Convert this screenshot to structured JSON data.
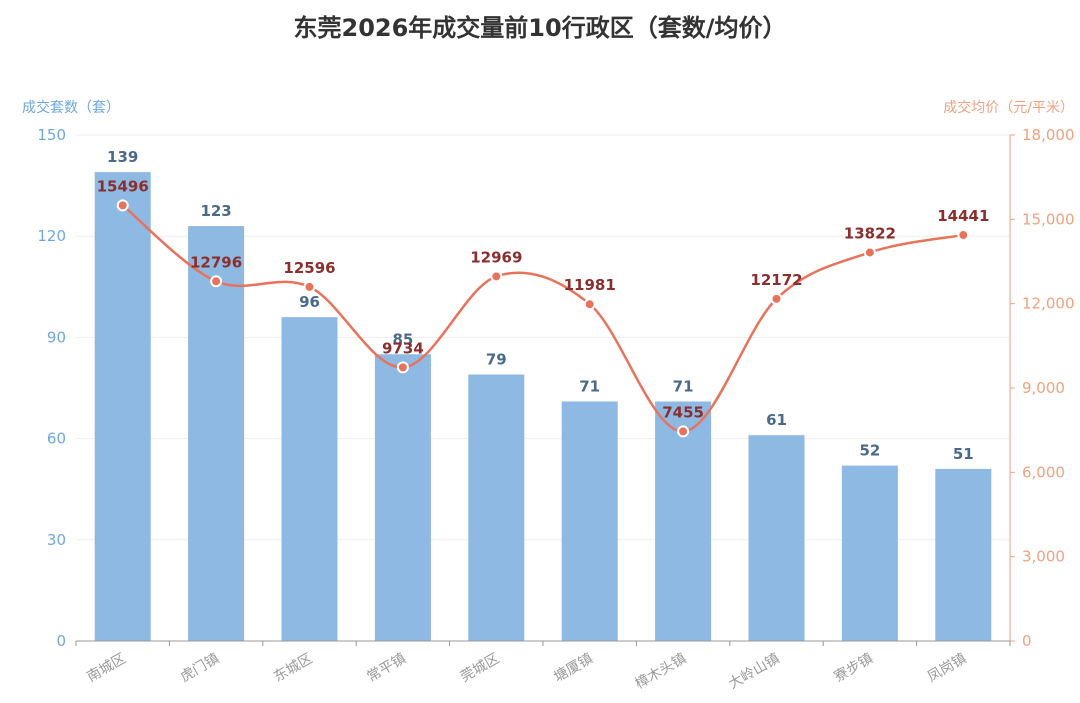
{
  "chart_data": {
    "type": "bar",
    "title": "东莞2026年成交量前10行政区（套数/均价）",
    "categories": [
      "南城区",
      "虎门镇",
      "东城区",
      "常平镇",
      "莞城区",
      "塘厦镇",
      "樟木头镇",
      "大岭山镇",
      "寮步镇",
      "凤岗镇"
    ],
    "series": [
      {
        "name": "成交套数（套）",
        "type": "bar",
        "axis": "left",
        "color": "#8db9e2",
        "values": [
          139,
          123,
          96,
          85,
          79,
          71,
          71,
          61,
          52,
          51
        ]
      },
      {
        "name": "成交均价（元/平米）",
        "type": "line",
        "axis": "right",
        "color": "#e8735c",
        "values": [
          15496,
          12796,
          12596,
          9734,
          12969,
          11981,
          7455,
          12172,
          13822,
          14441
        ]
      }
    ],
    "y_left": {
      "label": "成交套数（套）",
      "range": [
        0,
        150
      ],
      "ticks": [
        0,
        30,
        60,
        90,
        120,
        150
      ],
      "tick_labels": [
        "0",
        "30",
        "60",
        "90",
        "120",
        "150"
      ]
    },
    "y_right": {
      "label": "成交均价（元/平米）",
      "range": [
        0,
        18000
      ],
      "ticks": [
        0,
        3000,
        6000,
        9000,
        12000,
        15000,
        18000
      ],
      "tick_labels": [
        "0",
        "3,000",
        "6,000",
        "9,000",
        "12,000",
        "15,000",
        "18,000"
      ]
    },
    "grid": true,
    "legend": "none"
  },
  "colors": {
    "bar": "#8db9e2",
    "line": "#e8735c",
    "left_axis": "#6fa8dc",
    "right_axis": "#f0a27f"
  }
}
